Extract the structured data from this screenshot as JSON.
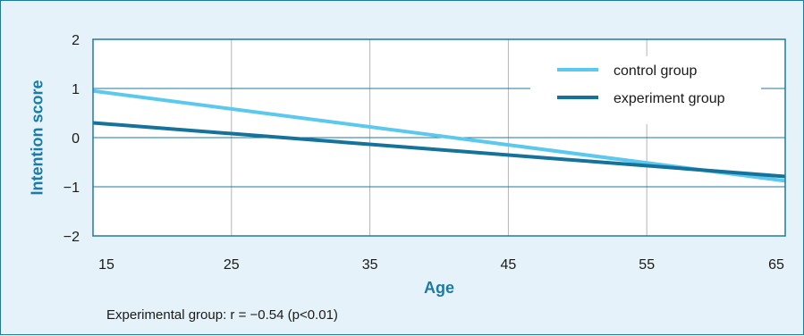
{
  "chart_data": {
    "type": "line",
    "xlabel": "Age",
    "ylabel": "Intention score",
    "xlim": [
      15,
      65
    ],
    "ylim": [
      -2,
      2
    ],
    "x_ticks": [
      "15",
      "25",
      "35",
      "45",
      "55",
      "65"
    ],
    "y_ticks": [
      "2",
      "1",
      "0",
      "−1",
      "−2"
    ],
    "grid": true,
    "legend_position": "top-right",
    "series": [
      {
        "name": "control group",
        "color": "#5bc8ee",
        "x": [
          15,
          65
        ],
        "y": [
          0.95,
          -0.88
        ]
      },
      {
        "name": "experiment group",
        "color": "#14729b",
        "x": [
          15,
          65
        ],
        "y": [
          0.3,
          -0.79
        ]
      }
    ],
    "annotation": "Experimental group: r = −0.54 (p<0.01)"
  },
  "colors": {
    "background": "#e6f2f9",
    "plot_background": "#ffffff",
    "axis": "#1b7aa6",
    "gridline": "#b5b5b5"
  }
}
